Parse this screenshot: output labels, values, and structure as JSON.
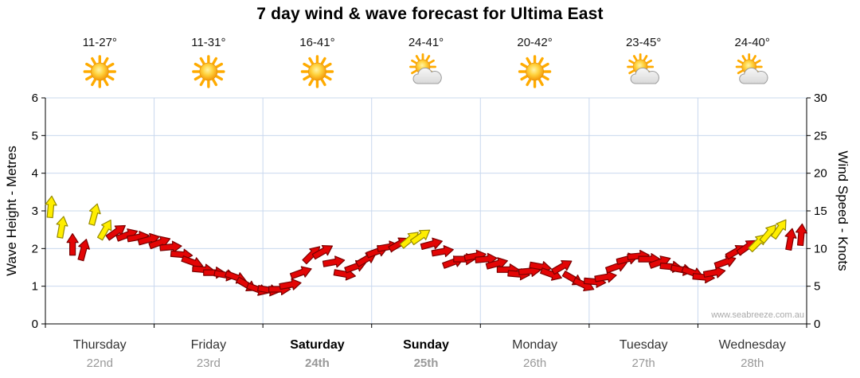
{
  "title": "7 day wind & wave forecast for Ultima East",
  "watermark": "www.seabreeze.com.au",
  "days": [
    {
      "name": "Thursday",
      "date": "22nd",
      "temp": "11-27°",
      "icon": "sunny",
      "bold": false
    },
    {
      "name": "Friday",
      "date": "23rd",
      "temp": "11-31°",
      "icon": "sunny",
      "bold": false
    },
    {
      "name": "Saturday",
      "date": "24th",
      "temp": "16-41°",
      "icon": "sunny",
      "bold": true
    },
    {
      "name": "Sunday",
      "date": "25th",
      "temp": "24-41°",
      "icon": "partly-cloudy",
      "bold": true
    },
    {
      "name": "Monday",
      "date": "26th",
      "temp": "20-42°",
      "icon": "sunny",
      "bold": false
    },
    {
      "name": "Tuesday",
      "date": "27th",
      "temp": "23-45°",
      "icon": "partly-cloudy",
      "bold": false
    },
    {
      "name": "Wednesday",
      "date": "28th",
      "temp": "24-40°",
      "icon": "partly-cloudy",
      "bold": false
    }
  ],
  "colors": {
    "arrow_red": "#e30505",
    "arrow_red_border": "#7a0000",
    "arrow_yellow": "#ffee00",
    "arrow_yellow_border": "#968a00",
    "grid": "#c9d8ee",
    "axis": "#000000",
    "day_text": "#333333",
    "date_text": "#999999",
    "temp_text": "#141414"
  },
  "chart_data": {
    "type": "scatter",
    "marker": "wind-arrow",
    "title": "7 day wind & wave forecast for Ultima East",
    "grid": true,
    "y_left": {
      "label": "Wave Height - Metres",
      "range": [
        0,
        6
      ],
      "ticks": [
        0,
        1,
        2,
        3,
        4,
        5,
        6
      ]
    },
    "y_right": {
      "label": "Wind Speed - Knots",
      "range": [
        0,
        30
      ],
      "ticks": [
        0,
        5,
        10,
        15,
        20,
        25,
        30
      ]
    },
    "x": {
      "categories": [
        "Thursday 22nd",
        "Friday 23rd",
        "Saturday 24th",
        "Sunday 25th",
        "Monday 26th",
        "Tuesday 27th",
        "Wednesday 28th"
      ],
      "arrows_per_day": 10
    },
    "arrow_format": [
      "day_index",
      "slot",
      "wind_knots",
      "direction_deg_cw_from_up",
      "color(R=red,Y=yellow)"
    ],
    "arrows": [
      [
        0,
        0,
        15.5,
        5,
        "Y"
      ],
      [
        0,
        1,
        12.8,
        10,
        "Y"
      ],
      [
        0,
        2,
        10.5,
        0,
        "R"
      ],
      [
        0,
        3,
        9.8,
        15,
        "R"
      ],
      [
        0,
        4,
        14.5,
        15,
        "Y"
      ],
      [
        0,
        5,
        12.5,
        30,
        "Y"
      ],
      [
        0,
        6,
        12.2,
        55,
        "R"
      ],
      [
        0,
        7,
        11.8,
        70,
        "R"
      ],
      [
        0,
        8,
        11.5,
        80,
        "R"
      ],
      [
        0,
        9,
        11.2,
        75,
        "R"
      ],
      [
        1,
        0,
        10.8,
        70,
        "R"
      ],
      [
        1,
        1,
        10.2,
        85,
        "R"
      ],
      [
        1,
        2,
        9.2,
        95,
        "R"
      ],
      [
        1,
        3,
        8.2,
        110,
        "R"
      ],
      [
        1,
        4,
        7.2,
        95,
        "R"
      ],
      [
        1,
        5,
        6.8,
        90,
        "R"
      ],
      [
        1,
        6,
        6.5,
        100,
        "R"
      ],
      [
        1,
        7,
        6.2,
        110,
        "R"
      ],
      [
        1,
        8,
        5.2,
        120,
        "R"
      ],
      [
        1,
        9,
        4.6,
        110,
        "R"
      ],
      [
        2,
        0,
        4.5,
        100,
        "R"
      ],
      [
        2,
        1,
        4.6,
        90,
        "R"
      ],
      [
        2,
        2,
        5.2,
        80,
        "R"
      ],
      [
        2,
        3,
        6.8,
        70,
        "R"
      ],
      [
        2,
        4,
        9.2,
        45,
        "R"
      ],
      [
        2,
        5,
        9.6,
        60,
        "R"
      ],
      [
        2,
        6,
        8.2,
        80,
        "R"
      ],
      [
        2,
        7,
        6.6,
        100,
        "R"
      ],
      [
        2,
        8,
        7.6,
        70,
        "R"
      ],
      [
        2,
        9,
        8.6,
        60,
        "R"
      ],
      [
        3,
        0,
        9.6,
        70,
        "R"
      ],
      [
        3,
        1,
        10.2,
        80,
        "R"
      ],
      [
        3,
        2,
        10.6,
        60,
        "R"
      ],
      [
        3,
        3,
        11.2,
        50,
        "Y"
      ],
      [
        3,
        4,
        11.6,
        55,
        "Y"
      ],
      [
        3,
        5,
        10.6,
        75,
        "R"
      ],
      [
        3,
        6,
        9.6,
        80,
        "R"
      ],
      [
        3,
        7,
        8.2,
        70,
        "R"
      ],
      [
        3,
        8,
        8.6,
        90,
        "R"
      ],
      [
        3,
        9,
        9.0,
        80,
        "R"
      ],
      [
        4,
        0,
        8.6,
        85,
        "R"
      ],
      [
        4,
        1,
        8.0,
        75,
        "R"
      ],
      [
        4,
        2,
        7.2,
        90,
        "R"
      ],
      [
        4,
        3,
        6.6,
        95,
        "R"
      ],
      [
        4,
        4,
        7.0,
        85,
        "R"
      ],
      [
        4,
        5,
        7.6,
        100,
        "R"
      ],
      [
        4,
        6,
        6.6,
        110,
        "R"
      ],
      [
        4,
        7,
        7.6,
        60,
        "R"
      ],
      [
        4,
        8,
        6.0,
        120,
        "R"
      ],
      [
        4,
        9,
        5.2,
        115,
        "R"
      ],
      [
        5,
        0,
        5.6,
        95,
        "R"
      ],
      [
        5,
        1,
        6.2,
        80,
        "R"
      ],
      [
        5,
        2,
        7.6,
        70,
        "R"
      ],
      [
        5,
        3,
        8.6,
        75,
        "R"
      ],
      [
        5,
        4,
        9.0,
        85,
        "R"
      ],
      [
        5,
        5,
        8.6,
        90,
        "R"
      ],
      [
        5,
        6,
        8.2,
        70,
        "R"
      ],
      [
        5,
        7,
        7.6,
        95,
        "R"
      ],
      [
        5,
        8,
        7.2,
        100,
        "R"
      ],
      [
        5,
        9,
        6.8,
        110,
        "R"
      ],
      [
        6,
        0,
        6.2,
        95,
        "R"
      ],
      [
        6,
        1,
        6.8,
        80,
        "R"
      ],
      [
        6,
        2,
        8.2,
        70,
        "R"
      ],
      [
        6,
        3,
        9.6,
        60,
        "R"
      ],
      [
        6,
        4,
        10.2,
        55,
        "R"
      ],
      [
        6,
        5,
        10.8,
        45,
        "Y"
      ],
      [
        6,
        6,
        12.0,
        40,
        "Y"
      ],
      [
        6,
        7,
        12.6,
        35,
        "Y"
      ],
      [
        6,
        8,
        11.2,
        10,
        "R"
      ],
      [
        6,
        9,
        11.8,
        5,
        "R"
      ]
    ]
  }
}
